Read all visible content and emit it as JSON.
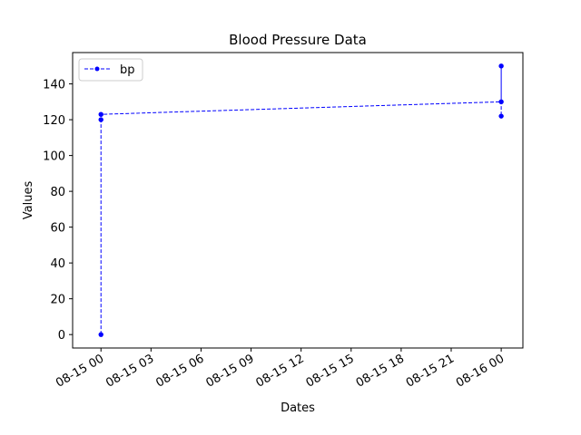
{
  "chart_data": {
    "type": "line",
    "title": "Blood Pressure Data",
    "xlabel": "Dates",
    "ylabel": "Values",
    "x_ticks": [
      "08-15 00",
      "08-15 03",
      "08-15 06",
      "08-15 09",
      "08-15 12",
      "08-15 15",
      "08-15 18",
      "08-15 21",
      "08-16 00"
    ],
    "y_ticks": [
      0,
      20,
      40,
      60,
      80,
      100,
      120,
      140
    ],
    "xlim": [
      "2023-08-14T22:18:00",
      "2023-08-16T01:18:00"
    ],
    "ylim": [
      -7.5,
      157.5
    ],
    "grid": false,
    "legend_position": "upper-left",
    "series": [
      {
        "name": "bp",
        "color": "#0000ff",
        "line_style": "dashed",
        "marker": "circle",
        "x": [
          "2023-08-15T00:00:00",
          "2023-08-15T00:00:00",
          "2023-08-15T00:00:00",
          "2023-08-16T00:00:00",
          "2023-08-16T00:00:00",
          "2023-08-16T00:00:00"
        ],
        "y": [
          0,
          120,
          123,
          130,
          150,
          122
        ]
      }
    ]
  }
}
